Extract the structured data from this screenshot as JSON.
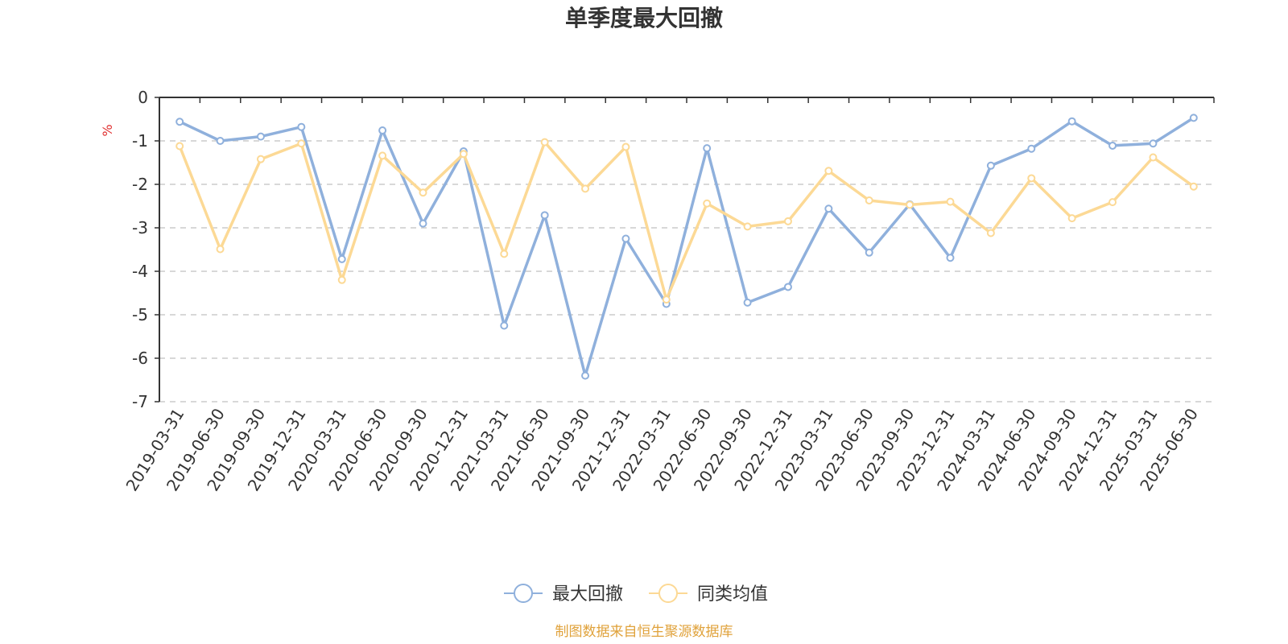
{
  "chart_data": {
    "type": "line",
    "title": "单季度最大回撤",
    "ylabel": "%",
    "ylim": [
      -7,
      0
    ],
    "yticks": [
      0,
      -1,
      -2,
      -3,
      -4,
      -5,
      -6,
      -7
    ],
    "grid": true,
    "legend_position": "bottom",
    "categories": [
      "2019-03-31",
      "2019-06-30",
      "2019-09-30",
      "2019-12-31",
      "2020-03-31",
      "2020-06-30",
      "2020-09-30",
      "2020-12-31",
      "2021-03-31",
      "2021-06-30",
      "2021-09-30",
      "2021-12-31",
      "2022-03-31",
      "2022-06-30",
      "2022-09-30",
      "2022-12-31",
      "2023-03-31",
      "2023-06-30",
      "2023-09-30",
      "2023-12-31",
      "2024-03-31",
      "2024-06-30",
      "2024-09-30",
      "2024-12-31",
      "2025-03-31",
      "2025-06-30"
    ],
    "series": [
      {
        "name": "最大回撤",
        "color": "#8fb0dc",
        "values": [
          -0.56,
          -1.0,
          -0.9,
          -0.68,
          -3.72,
          -0.76,
          -2.9,
          -1.24,
          -5.25,
          -2.71,
          -6.4,
          -3.25,
          -4.75,
          -1.17,
          -4.72,
          -4.36,
          -2.56,
          -3.57,
          -2.46,
          -3.69,
          -1.57,
          -1.18,
          -0.55,
          -1.11,
          -1.06,
          -0.47
        ]
      },
      {
        "name": "同类均值",
        "color": "#fcd995",
        "values": [
          -1.12,
          -3.49,
          -1.42,
          -1.06,
          -4.2,
          -1.34,
          -2.19,
          -1.3,
          -3.6,
          -1.03,
          -2.1,
          -1.14,
          -4.65,
          -2.44,
          -2.97,
          -2.85,
          -1.69,
          -2.37,
          -2.47,
          -2.4,
          -3.12,
          -1.86,
          -2.78,
          -2.41,
          -1.38,
          -2.05
        ]
      }
    ]
  },
  "source": {
    "text": "制图数据来自恒生聚源数据库",
    "color": "#e0a23b"
  },
  "unit_color": "#e03030"
}
